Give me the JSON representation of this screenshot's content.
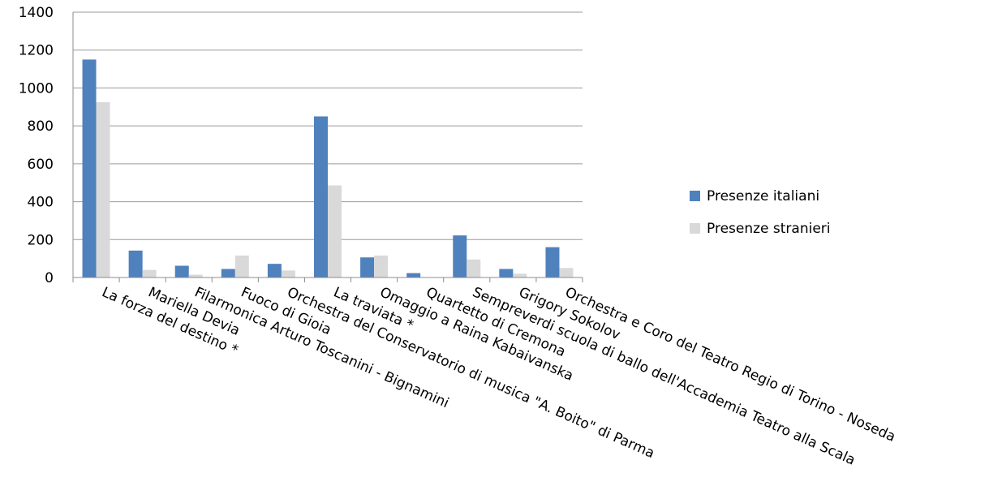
{
  "chart_data": {
    "type": "bar",
    "title": "",
    "xlabel": "",
    "ylabel": "",
    "ylim": [
      0,
      1400
    ],
    "yticks": [
      0,
      200,
      400,
      600,
      800,
      1000,
      1200,
      1400
    ],
    "grid": true,
    "legend_position": "right",
    "categories": [
      "La forza del destino  *",
      "Mariella Devia",
      "Filarmonica Arturo Toscanini - Bignamini",
      "Fuoco di Gioia",
      "Orchestra del Conservatorio di musica \"A. Boito\" di Parma",
      "La traviata *",
      "Omaggio a Raina Kabaivanska",
      "Quartetto di Cremona",
      "Sempreverdi scuola di ballo dell'Accademia Teatro alla Scala",
      "Grigory Sokolov",
      "Orchestra e Coro del Teatro Regio di Torino - Noseda"
    ],
    "series": [
      {
        "name": "Presenze italiani",
        "color": "#4f81bd",
        "values": [
          1150,
          142,
          62,
          45,
          72,
          850,
          106,
          23,
          222,
          45,
          160
        ]
      },
      {
        "name": "Presenze stranieri",
        "color": "#d9d9d9",
        "values": [
          925,
          40,
          15,
          116,
          37,
          486,
          116,
          0,
          95,
          20,
          50
        ]
      }
    ]
  }
}
